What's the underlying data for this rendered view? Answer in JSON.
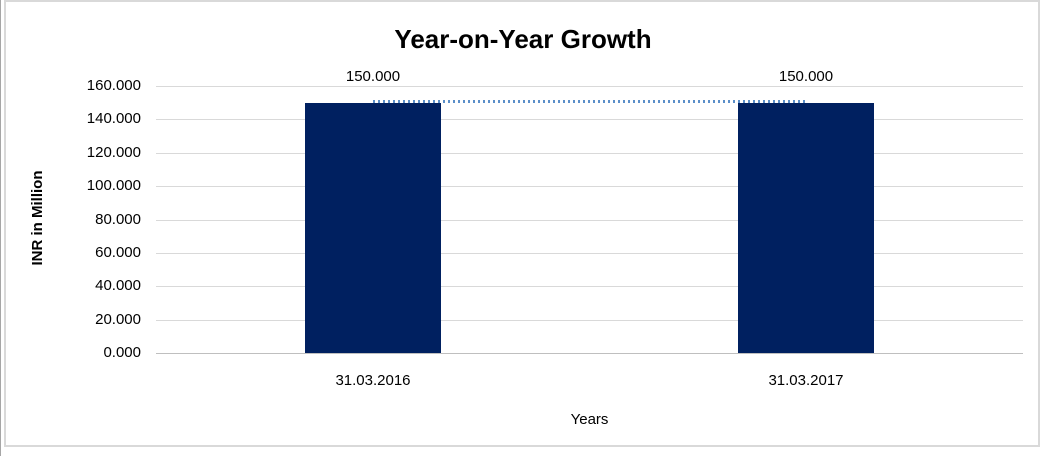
{
  "chart_data": {
    "type": "bar",
    "title": "Year-on-Year Growth",
    "categories": [
      "31.03.2016",
      "31.03.2017"
    ],
    "values": [
      150,
      150
    ],
    "data_labels": [
      "150.000",
      "150.000"
    ],
    "xlabel": "Years",
    "ylabel": "INR in Million",
    "ylim": [
      0,
      160
    ],
    "ytick_step": 20,
    "yticks": [
      {
        "value": 160,
        "label": "160.000"
      },
      {
        "value": 140,
        "label": "140.000"
      },
      {
        "value": 120,
        "label": "120.000"
      },
      {
        "value": 100,
        "label": "100.000"
      },
      {
        "value": 80,
        "label": "80.000"
      },
      {
        "value": 60,
        "label": "60.000"
      },
      {
        "value": 40,
        "label": "40.000"
      },
      {
        "value": 20,
        "label": "20.000"
      },
      {
        "value": 0,
        "label": "0.000"
      }
    ],
    "trendline": {
      "type": "linear",
      "style": "dotted",
      "value": 150,
      "color": "#5b8fc9"
    },
    "legend": "none",
    "grid": "horizontal",
    "bar_color": "#002060",
    "gridline_color": "#d9d9d9",
    "axis_line_color": "#bfbfbf",
    "border_color": "#d9d9d9",
    "text_color": "#000000"
  }
}
